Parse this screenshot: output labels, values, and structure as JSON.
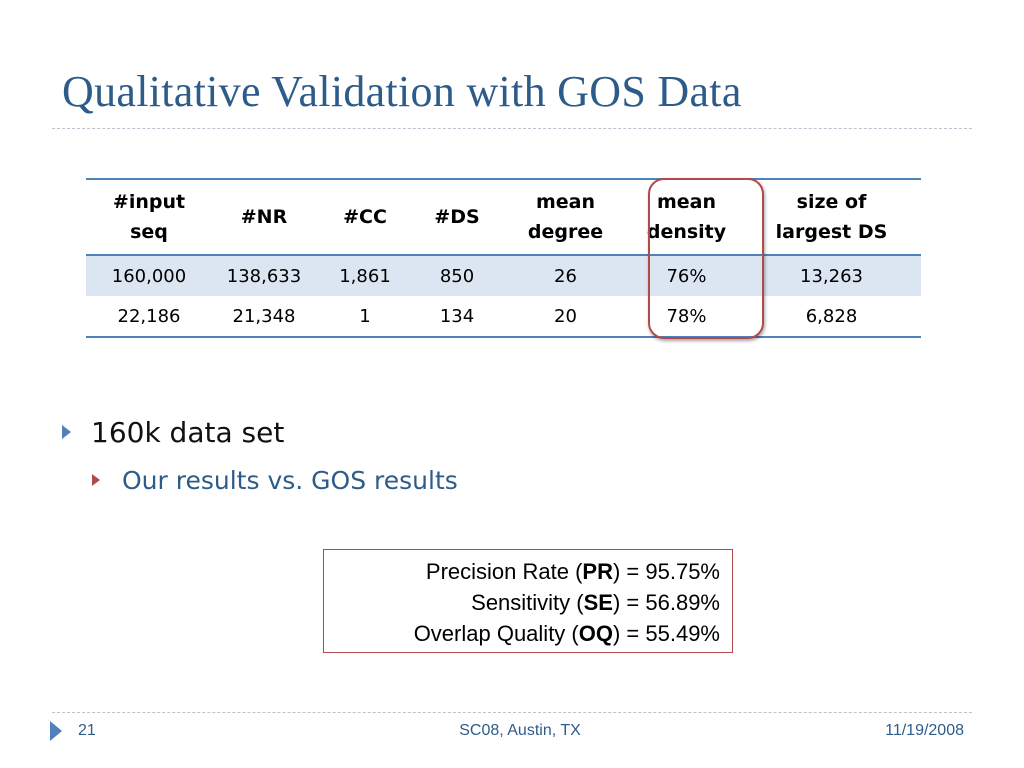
{
  "slide": {
    "title": "Qualitative Validation with GOS Data"
  },
  "table": {
    "headers": [
      [
        "#input",
        "seq"
      ],
      [
        "#NR"
      ],
      [
        "#CC"
      ],
      [
        "#DS"
      ],
      [
        "mean",
        "degree"
      ],
      [
        "mean",
        "density"
      ],
      [
        "size of",
        "largest DS"
      ]
    ],
    "rows": [
      [
        "160,000",
        "138,633",
        "1,861",
        "850",
        "26",
        "76%",
        "13,263"
      ],
      [
        "22,186",
        "21,348",
        "1",
        "134",
        "20",
        "78%",
        "6,828"
      ]
    ]
  },
  "bullets": {
    "level1": "160k data set",
    "level2": "Our results vs. GOS results"
  },
  "metrics": [
    {
      "label": "Precision Rate (",
      "abbr": "PR",
      "value": ") = 95.75%"
    },
    {
      "label": "Sensitivity (",
      "abbr": "SE",
      "value": ") = 56.89%"
    },
    {
      "label": "Overlap Quality (",
      "abbr": "OQ",
      "value": ") = 55.49%"
    }
  ],
  "footer": {
    "page_number": "21",
    "event": "SC08, Austin, TX",
    "date": "11/19/2008"
  },
  "colors": {
    "title": "#2e5c8a",
    "table_rule": "#4f81bd",
    "row_shade": "#dce6f2",
    "highlight": "#b14a4a"
  },
  "icons": {
    "bullet_level1": "triangle-bullet-icon",
    "bullet_level2": "triangle-bullet-icon",
    "footer": "triangle-icon"
  }
}
